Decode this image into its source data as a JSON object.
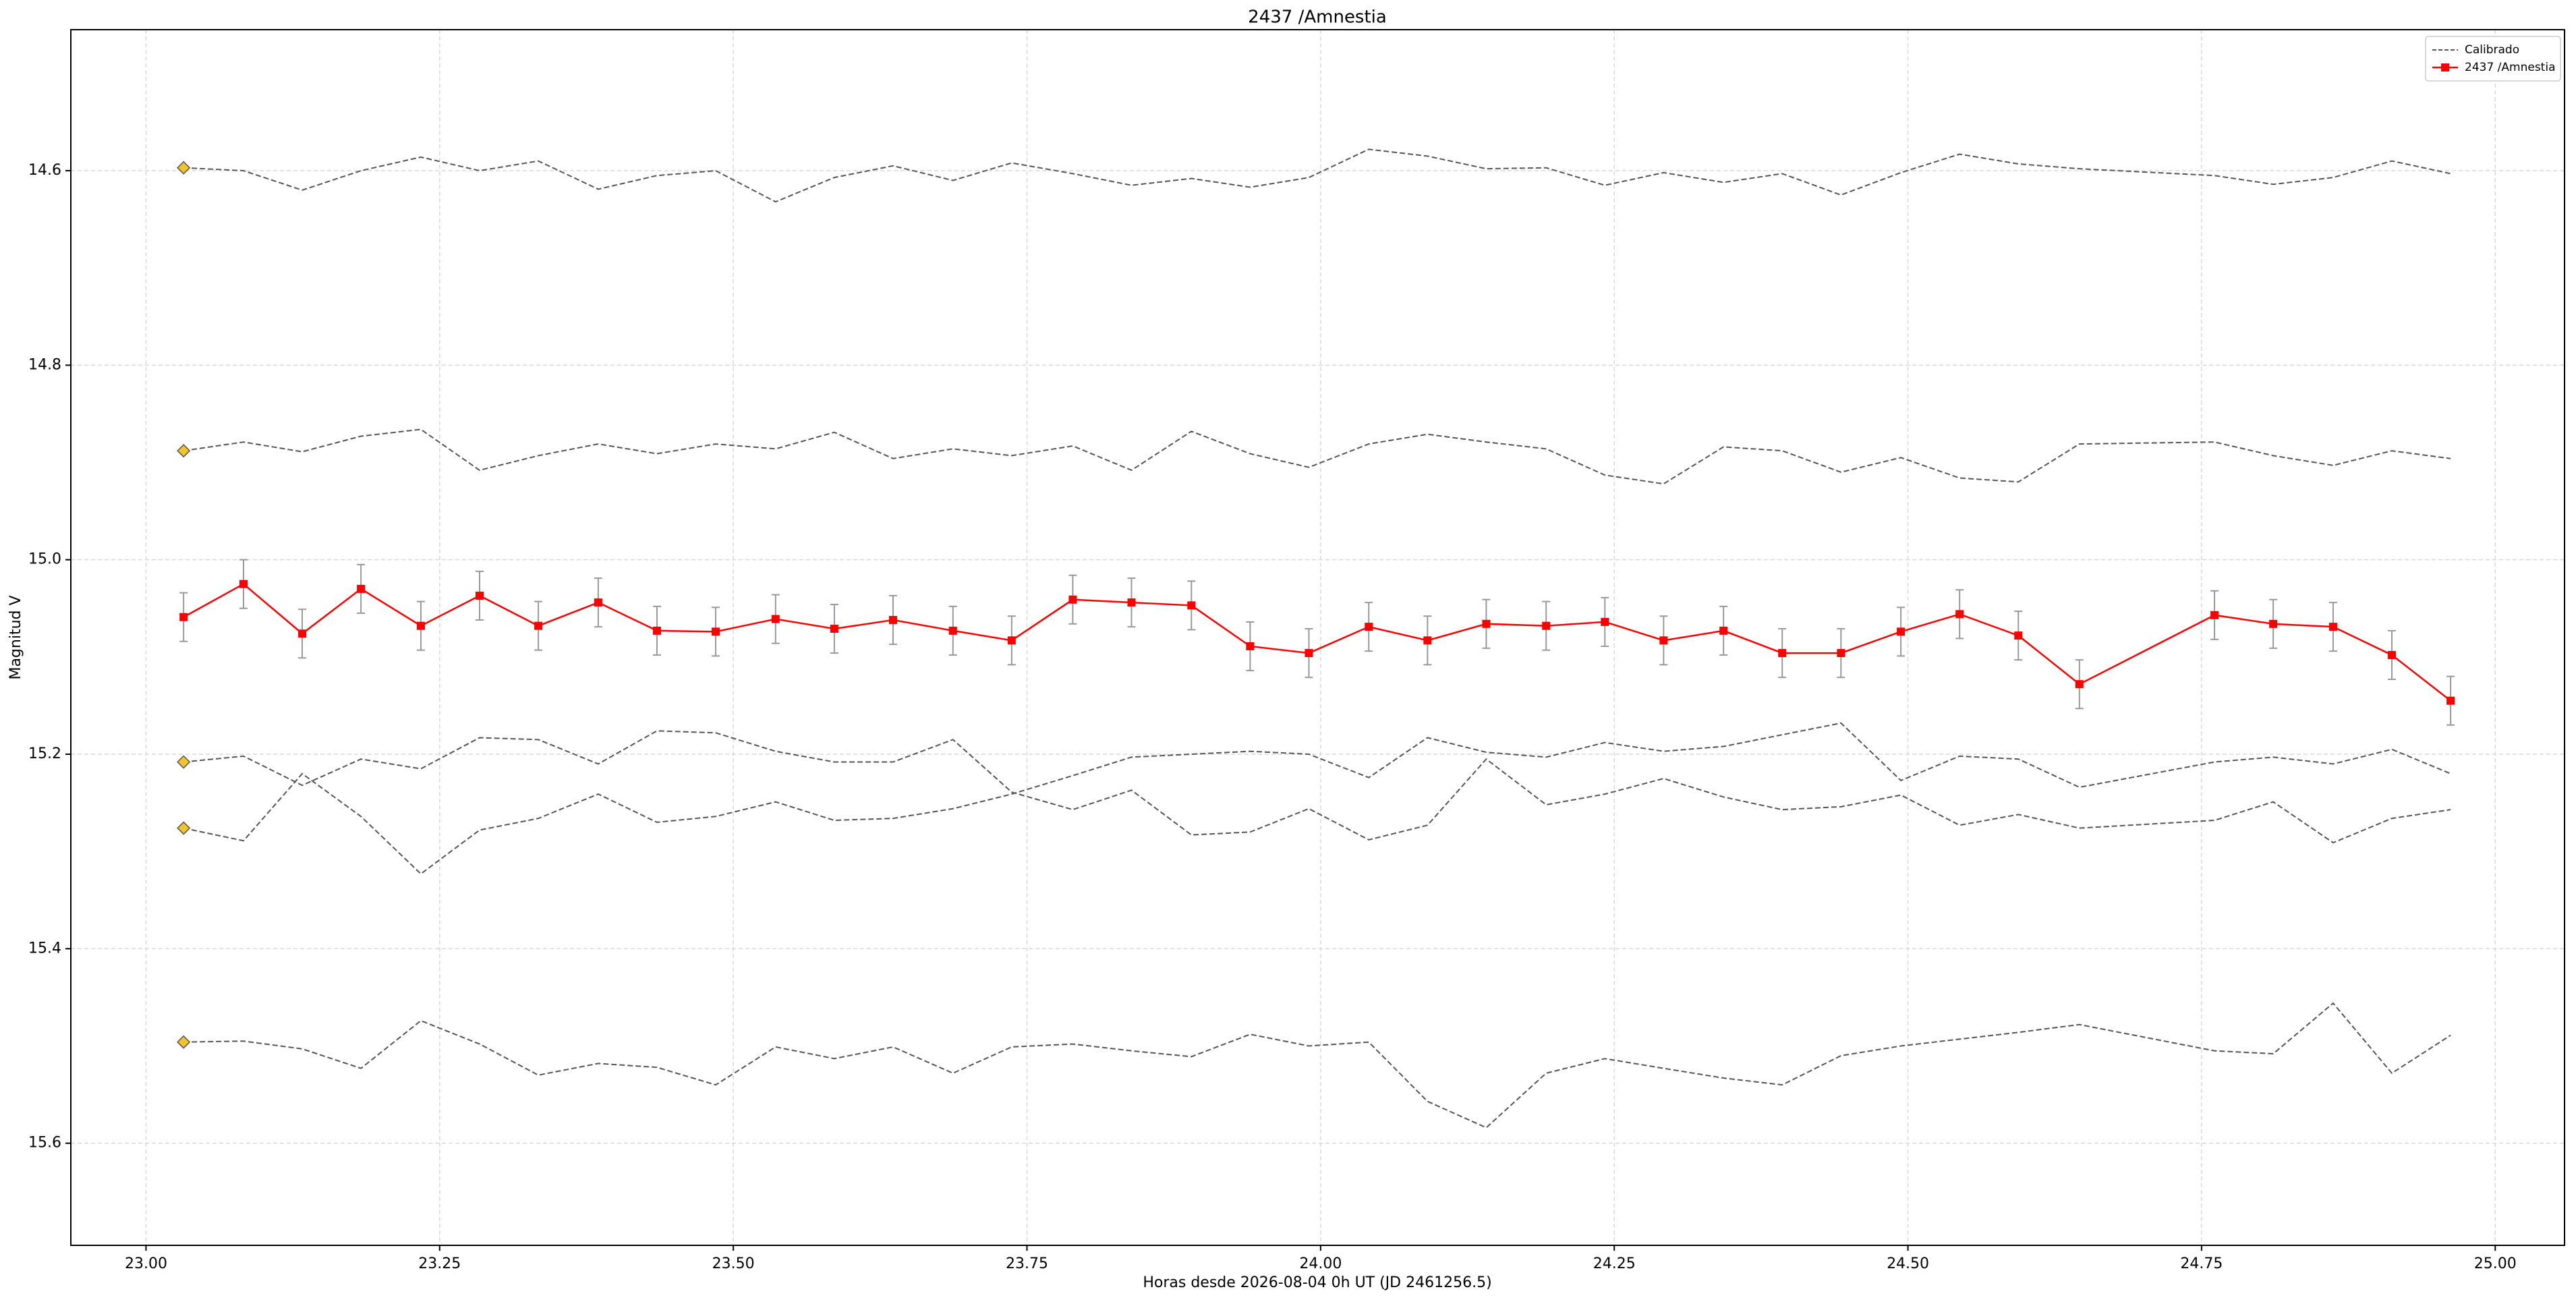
{
  "chart_data": {
    "type": "line",
    "title": "2437 /Amnestia",
    "x_label": "Horas desde 2026-08-04 0h UT (JD 2461256.5)",
    "y_label": "Magnitud V",
    "x": [
      23.032,
      23.083,
      23.133,
      23.183,
      23.234,
      23.284,
      23.334,
      23.385,
      23.435,
      23.485,
      23.536,
      23.586,
      23.636,
      23.687,
      23.737,
      23.789,
      23.839,
      23.89,
      23.94,
      23.99,
      24.041,
      24.091,
      24.141,
      24.192,
      24.242,
      24.292,
      24.343,
      24.393,
      24.443,
      24.494,
      24.544,
      24.594,
      24.646,
      24.761,
      24.811,
      24.862,
      24.912,
      24.962
    ],
    "comparison": {
      "name": "Calibrado",
      "color": "#555555",
      "marker_color": "#f2c42c",
      "values": [
        [
          14.597,
          14.6,
          14.62,
          14.6,
          14.586,
          14.6,
          14.59,
          14.619,
          14.605,
          14.6,
          14.632,
          14.607,
          14.595,
          14.61,
          14.592,
          14.603,
          14.615,
          14.608,
          14.617,
          14.607,
          14.578,
          14.585,
          14.598,
          14.597,
          14.615,
          14.602,
          14.612,
          14.603,
          14.625,
          14.602,
          14.583,
          14.593,
          14.598,
          14.605,
          14.614,
          14.607,
          14.59,
          14.603
        ],
        [
          14.888,
          14.879,
          14.889,
          14.873,
          14.866,
          14.908,
          14.893,
          14.881,
          14.891,
          14.881,
          14.886,
          14.869,
          14.896,
          14.886,
          14.893,
          14.883,
          14.908,
          14.868,
          14.891,
          14.905,
          14.881,
          14.871,
          14.879,
          14.886,
          14.913,
          14.922,
          14.884,
          14.888,
          14.91,
          14.895,
          14.916,
          14.92,
          14.881,
          14.879,
          14.893,
          14.903,
          14.888,
          14.896
        ],
        [
          15.208,
          15.202,
          15.232,
          15.205,
          15.215,
          15.183,
          15.185,
          15.21,
          15.176,
          15.178,
          15.197,
          15.208,
          15.208,
          15.185,
          15.239,
          15.257,
          15.237,
          15.283,
          15.28,
          15.256,
          15.288,
          15.273,
          15.205,
          15.252,
          15.241,
          15.225,
          15.244,
          15.257,
          15.254,
          15.242,
          15.273,
          15.262,
          15.276,
          15.268,
          15.249,
          15.291,
          15.266,
          15.257
        ],
        [
          15.276,
          15.289,
          15.22,
          15.264,
          15.323,
          15.278,
          15.266,
          15.241,
          15.27,
          15.264,
          15.249,
          15.268,
          15.266,
          15.256,
          15.241,
          15.222,
          15.203,
          15.2,
          15.197,
          15.2,
          15.224,
          15.183,
          15.198,
          15.203,
          15.188,
          15.197,
          15.192,
          15.18,
          15.168,
          15.227,
          15.202,
          15.205,
          15.234,
          15.208,
          15.203,
          15.21,
          15.195,
          15.22
        ],
        [
          15.496,
          15.495,
          15.503,
          15.523,
          15.474,
          15.498,
          15.53,
          15.518,
          15.522,
          15.54,
          15.501,
          15.513,
          15.501,
          15.528,
          15.501,
          15.498,
          15.505,
          15.511,
          15.488,
          15.5,
          15.496,
          15.557,
          15.584,
          15.528,
          15.513,
          15.523,
          15.533,
          15.54,
          15.51,
          15.5,
          15.493,
          15.486,
          15.478,
          15.505,
          15.508,
          15.456,
          15.528,
          15.489
        ]
      ]
    },
    "series": [
      {
        "name": "2437 /Amnestia",
        "color": "#ff0000",
        "error_color": "#999999",
        "values": [
          15.059,
          15.025,
          15.076,
          15.03,
          15.068,
          15.037,
          15.068,
          15.044,
          15.073,
          15.074,
          15.061,
          15.071,
          15.062,
          15.073,
          15.083,
          15.041,
          15.044,
          15.047,
          15.089,
          15.096,
          15.069,
          15.083,
          15.066,
          15.068,
          15.064,
          15.083,
          15.073,
          15.096,
          15.096,
          15.074,
          15.056,
          15.078,
          15.128,
          15.057,
          15.066,
          15.069,
          15.098,
          15.145
        ],
        "errors": [
          0.025,
          0.025,
          0.025,
          0.025,
          0.025,
          0.025,
          0.025,
          0.025,
          0.025,
          0.025,
          0.025,
          0.025,
          0.025,
          0.025,
          0.025,
          0.025,
          0.025,
          0.025,
          0.025,
          0.025,
          0.025,
          0.025,
          0.025,
          0.025,
          0.025,
          0.025,
          0.025,
          0.025,
          0.025,
          0.025,
          0.025,
          0.025,
          0.025,
          0.025,
          0.025,
          0.025,
          0.025,
          0.025
        ]
      }
    ],
    "xlim": [
      22.936,
      25.059
    ],
    "ylim": [
      15.705,
      14.455
    ],
    "xticks": [
      {
        "value": 23,
        "label": "23.00"
      },
      {
        "value": 23.25,
        "label": "23.25"
      },
      {
        "value": 23.5,
        "label": "23.50"
      },
      {
        "value": 23.75,
        "label": "23.75"
      },
      {
        "value": 24,
        "label": "24.00"
      },
      {
        "value": 24.25,
        "label": "24.25"
      },
      {
        "value": 24.5,
        "label": "24.50"
      },
      {
        "value": 24.75,
        "label": "24.75"
      },
      {
        "value": 25,
        "label": "25.00"
      }
    ],
    "yticks": [
      14.6,
      14.8,
      {
        "value": 15,
        "label": "15.0"
      },
      15.2,
      15.4,
      15.6
    ],
    "grid": true,
    "legend": "upper right"
  }
}
